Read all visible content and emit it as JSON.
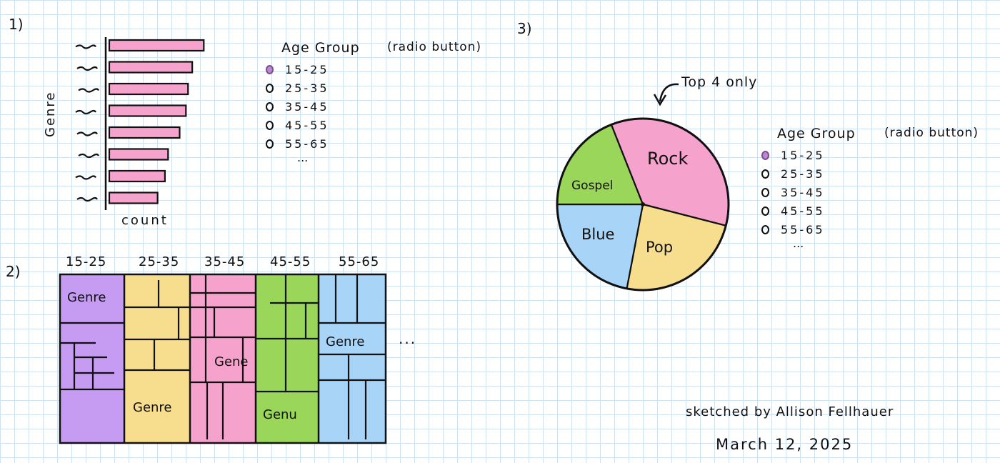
{
  "sections": {
    "one": "1)",
    "two": "2)",
    "three": "3)"
  },
  "bar_chart": {
    "ylabel": "Genre",
    "xlabel": "count",
    "chart_data": {
      "type": "bar",
      "orientation": "horizontal",
      "categories": [
        "~",
        "~",
        "~",
        "~",
        "~",
        "~",
        "~",
        "~"
      ],
      "values": [
        9,
        7.9,
        7.5,
        7.3,
        6.7,
        5.6,
        5.3,
        4.6
      ],
      "color": "#f5a3cd"
    }
  },
  "radio_group_1": {
    "title": "Age Group",
    "note": "(radio button)",
    "options": [
      "15-25",
      "25-35",
      "35-45",
      "45-55",
      "55-65"
    ],
    "selected": 0,
    "more": "..."
  },
  "treemap": {
    "age_groups": [
      "15-25",
      "25-35",
      "35-45",
      "45-55",
      "55-65"
    ],
    "column_colors": [
      "#c59cf2",
      "#f7de8e",
      "#f5a3cd",
      "#9ad65a",
      "#a8d4f7"
    ],
    "labels": [
      "Genre",
      "Genre",
      "Gene",
      "Genu",
      "Genre"
    ],
    "more": "..."
  },
  "pie": {
    "annotation": "Top 4 only",
    "chart_data": {
      "type": "pie",
      "slices": [
        {
          "label": "Rock",
          "value": 35,
          "color": "#f5a3cd"
        },
        {
          "label": "Pop",
          "value": 24,
          "color": "#f7de8e"
        },
        {
          "label": "Blue",
          "value": 22,
          "color": "#a8d4f7"
        },
        {
          "label": "Gospel",
          "value": 19,
          "color": "#9ad65a"
        }
      ]
    }
  },
  "radio_group_2": {
    "title": "Age Group",
    "note": "(radio button)",
    "options": [
      "15-25",
      "25-35",
      "35-45",
      "45-55",
      "55-65"
    ],
    "selected": 0,
    "more": "..."
  },
  "credit": {
    "author": "sketched by Allison Fellhauer",
    "date": "March 12, 2025"
  }
}
